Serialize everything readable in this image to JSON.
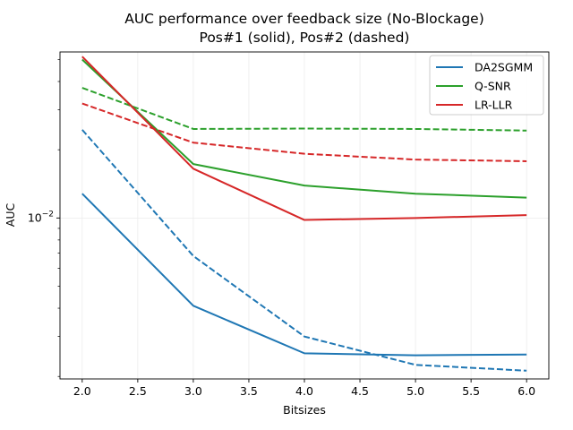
{
  "chart_data": {
    "type": "line",
    "title": "AUC performance over feedback size (No-Blockage)",
    "subtitle": "Pos#1 (solid), Pos#2 (dashed)",
    "xlabel": "Bitsizes",
    "ylabel": "AUC",
    "xscale": "linear",
    "yscale": "log",
    "xlim": [
      1.8,
      6.2
    ],
    "ylim": [
      0.00195,
      0.054
    ],
    "grid": true,
    "legend_position": "top-right",
    "x": [
      2.0,
      3.0,
      4.0,
      5.0,
      6.0
    ],
    "x_tick_labels": [
      "2.0",
      "2.5",
      "3.0",
      "3.5",
      "4.0",
      "4.5",
      "5.0",
      "5.5",
      "6.0"
    ],
    "x_ticks": [
      2.0,
      2.5,
      3.0,
      3.5,
      4.0,
      4.5,
      5.0,
      5.5,
      6.0
    ],
    "y_major_ticks": [
      0.01
    ],
    "y_major_tick_labels": [
      "10"
    ],
    "y_major_tick_exponents": [
      "−2"
    ],
    "y_minor_ticks": [
      0.002,
      0.003,
      0.004,
      0.005,
      0.006,
      0.007,
      0.008,
      0.009,
      0.02,
      0.03,
      0.04,
      0.05
    ],
    "series": [
      {
        "name": "DA2SGMM",
        "position": "Pos#1",
        "style": "solid",
        "color": "#1f77b4",
        "values": [
          0.0128,
          0.0041,
          0.00253,
          0.00248,
          0.0025
        ]
      },
      {
        "name": "DA2SGMM",
        "position": "Pos#2",
        "style": "dashed",
        "color": "#1f77b4",
        "values": [
          0.0245,
          0.0068,
          0.003,
          0.00225,
          0.00212
        ]
      },
      {
        "name": "Q-SNR",
        "position": "Pos#1",
        "style": "solid",
        "color": "#2ca02c",
        "values": [
          0.05,
          0.0173,
          0.0139,
          0.0128,
          0.0123
        ]
      },
      {
        "name": "Q-SNR",
        "position": "Pos#2",
        "style": "dashed",
        "color": "#2ca02c",
        "values": [
          0.0375,
          0.0247,
          0.0248,
          0.0247,
          0.0243
        ]
      },
      {
        "name": "LR-LLR",
        "position": "Pos#1",
        "style": "solid",
        "color": "#d62728",
        "values": [
          0.0515,
          0.0165,
          0.0098,
          0.01,
          0.0103
        ]
      },
      {
        "name": "LR-LLR",
        "position": "Pos#2",
        "style": "dashed",
        "color": "#d62728",
        "values": [
          0.032,
          0.0215,
          0.0192,
          0.0181,
          0.0178
        ]
      }
    ],
    "legend": [
      {
        "label": "DA2SGMM",
        "color": "#1f77b4"
      },
      {
        "label": "Q-SNR",
        "color": "#2ca02c"
      },
      {
        "label": "LR-LLR",
        "color": "#d62728"
      }
    ]
  }
}
